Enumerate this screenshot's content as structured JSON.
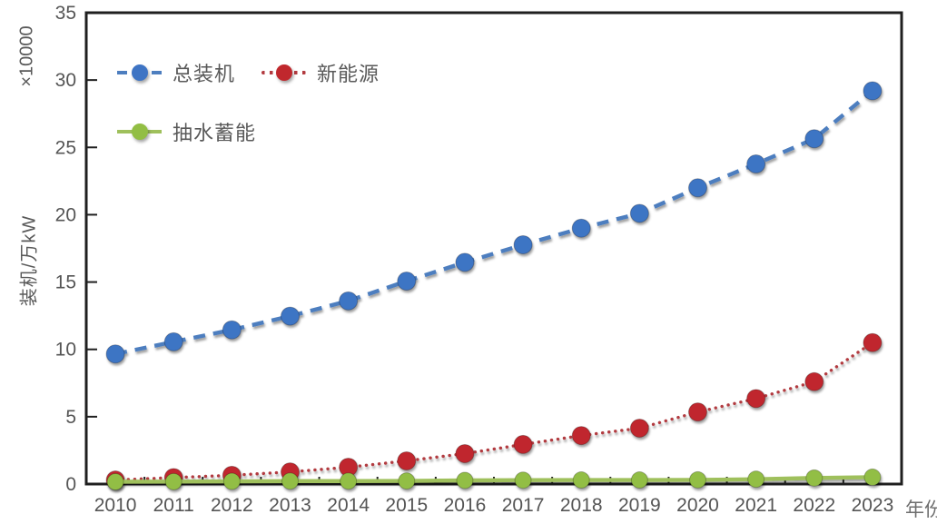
{
  "chart_data": {
    "type": "line",
    "title": "",
    "xlabel": "年份",
    "ylabel": "装机/万kW",
    "unit_label": "×10000",
    "categories": [
      "2010",
      "2011",
      "2012",
      "2013",
      "2014",
      "2015",
      "2016",
      "2017",
      "2018",
      "2019",
      "2020",
      "2021",
      "2022",
      "2023"
    ],
    "y_ticks": [
      0,
      5,
      10,
      15,
      20,
      25,
      30,
      35
    ],
    "ylim": [
      0,
      35
    ],
    "grid": false,
    "legend_position": "top-left-inside",
    "series": [
      {
        "name": "总装机",
        "style": "dashed",
        "marker_color": "#3e74c4",
        "line_color": "#4d7ebf",
        "values": [
          9.66,
          10.56,
          11.45,
          12.47,
          13.6,
          15.07,
          16.46,
          17.77,
          19.0,
          20.1,
          22.0,
          23.77,
          25.64,
          29.2
        ]
      },
      {
        "name": "新能源",
        "style": "dotted",
        "marker_color": "#c0282d",
        "line_color": "#b23a3f",
        "values": [
          0.3,
          0.48,
          0.65,
          0.9,
          1.25,
          1.72,
          2.26,
          2.94,
          3.6,
          4.15,
          5.35,
          6.35,
          7.6,
          10.5
        ]
      },
      {
        "name": "抽水蓄能",
        "style": "solid",
        "marker_color": "#92be44",
        "line_color": "#9fc05c",
        "values": [
          0.17,
          0.18,
          0.2,
          0.22,
          0.22,
          0.23,
          0.27,
          0.29,
          0.3,
          0.3,
          0.31,
          0.36,
          0.45,
          0.51
        ]
      }
    ],
    "colors": {
      "axis_frame": "#1f1f1f",
      "tick_label": "#555555",
      "axis_title": "#595959"
    }
  }
}
